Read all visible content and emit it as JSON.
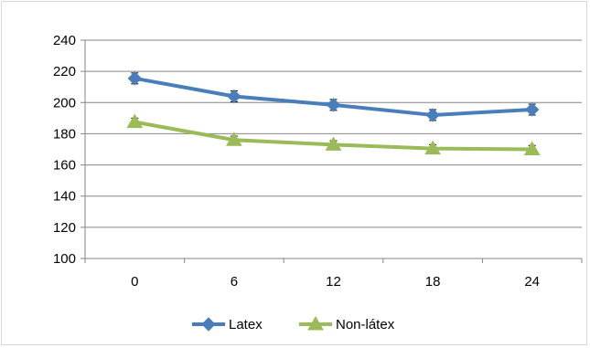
{
  "chart_data": {
    "type": "line",
    "title": "",
    "xlabel": "",
    "ylabel": "",
    "categories": [
      "0",
      "6",
      "12",
      "18",
      "24"
    ],
    "ylim": [
      100,
      240
    ],
    "ystep": 20,
    "yticks": [
      "100",
      "120",
      "140",
      "160",
      "180",
      "200",
      "220",
      "240"
    ],
    "grid": "horizontal",
    "legend_position": "bottom",
    "error_bars": true,
    "series": [
      {
        "name": "Latex",
        "values": [
          215.5,
          204,
          198.5,
          192,
          195.5
        ],
        "errors": [
          3.5,
          3.5,
          3.5,
          3.5,
          3.5
        ],
        "color": "#4a7ebb",
        "marker": "diamond"
      },
      {
        "name": "Non-látex",
        "values": [
          187.5,
          176,
          173,
          170.5,
          170
        ],
        "errors": [
          2.5,
          2.5,
          2.5,
          2.5,
          2.5
        ],
        "color": "#9bbb59",
        "marker": "triangle"
      }
    ]
  }
}
